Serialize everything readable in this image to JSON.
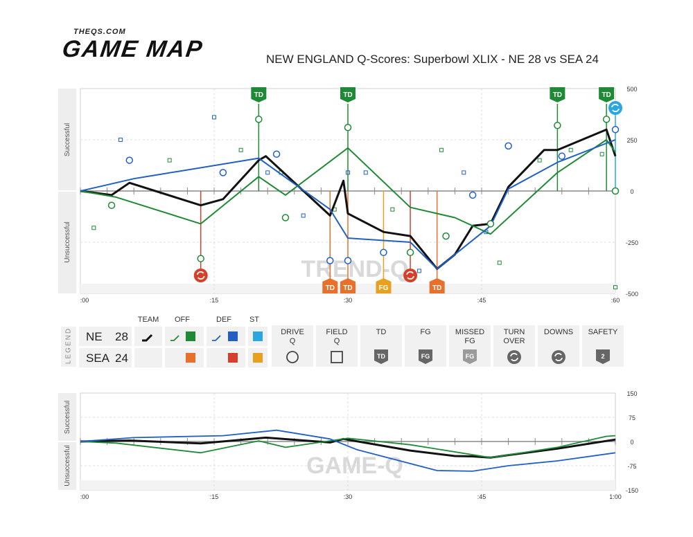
{
  "brand": {
    "site": "THEQS.COM",
    "product": "GAME MAP"
  },
  "title": "NEW ENGLAND Q-Scores: Superbowl XLIX - NE 28 vs SEA 24",
  "colors": {
    "team": "#111111",
    "ne_off": "#1e8a36",
    "ne_def": "#1f5fc6",
    "ne_st": "#2aa6e0",
    "sea_off": "#e8702a",
    "sea_def": "#d6402a",
    "sea_st": "#e7a11f",
    "panel": "#f1f1f1"
  },
  "chart_data": [
    {
      "type": "line",
      "name": "TREND-Q",
      "title": "NEW ENGLAND Q-Scores: Superbowl XLIX - NE 28 vs SEA 24",
      "watermark": "TREND-Q",
      "ylabel_top": "Successful",
      "ylabel_bottom": "Unsuccessful",
      "ylim": [
        -500,
        500
      ],
      "xlim": [
        0,
        60
      ],
      "yticks": [
        "500",
        "250",
        "0",
        "-250",
        "-500"
      ],
      "xticks": [
        ":00",
        ":15",
        ":30",
        ":45",
        ":60"
      ],
      "grid": true,
      "series": [
        {
          "name": "TEAM",
          "color": "#111111",
          "x": [
            0,
            3.5,
            5.5,
            13.5,
            16,
            20,
            20.8,
            28,
            29.5,
            30,
            34,
            37,
            40,
            42,
            44,
            46,
            48,
            52,
            53.5,
            59,
            60
          ],
          "y": [
            0,
            -20,
            40,
            -70,
            -40,
            150,
            170,
            -120,
            50,
            -110,
            -200,
            -220,
            -380,
            -310,
            -170,
            -160,
            20,
            200,
            200,
            300,
            170
          ]
        },
        {
          "name": "OFF",
          "color": "#1e8a36",
          "x": [
            0,
            4,
            13.5,
            20,
            23,
            30,
            37,
            42,
            46,
            53.5,
            59,
            60
          ],
          "y": [
            0,
            -30,
            -160,
            70,
            -20,
            210,
            -80,
            -130,
            -210,
            90,
            250,
            190
          ]
        },
        {
          "name": "DEF",
          "color": "#1f5fc6",
          "x": [
            0,
            6,
            20,
            28,
            30,
            37,
            40,
            46,
            48,
            53.5,
            60
          ],
          "y": [
            0,
            60,
            160,
            -90,
            -230,
            -250,
            -380,
            -170,
            10,
            140,
            250
          ]
        }
      ],
      "drive_q_points": [
        {
          "x": 3.5,
          "y": -70,
          "team": "OFF"
        },
        {
          "x": 5.5,
          "y": 150,
          "team": "DEF"
        },
        {
          "x": 16,
          "y": 90,
          "team": "DEF"
        },
        {
          "x": 13.5,
          "y": -330,
          "team": "OFF"
        },
        {
          "x": 20,
          "y": 350,
          "team": "OFF"
        },
        {
          "x": 22,
          "y": 180,
          "team": "DEF"
        },
        {
          "x": 23,
          "y": -130,
          "team": "OFF"
        },
        {
          "x": 28,
          "y": -340,
          "team": "DEF"
        },
        {
          "x": 30,
          "y": 310,
          "team": "OFF"
        },
        {
          "x": 30,
          "y": -340,
          "team": "DEF"
        },
        {
          "x": 34,
          "y": -300,
          "team": "DEF"
        },
        {
          "x": 37,
          "y": -300,
          "team": "OFF"
        },
        {
          "x": 41,
          "y": -220,
          "team": "OFF"
        },
        {
          "x": 44,
          "y": -20,
          "team": "DEF"
        },
        {
          "x": 46,
          "y": -160,
          "team": "OFF"
        },
        {
          "x": 48,
          "y": 220,
          "team": "DEF"
        },
        {
          "x": 53.5,
          "y": 320,
          "team": "OFF"
        },
        {
          "x": 54,
          "y": 170,
          "team": "DEF"
        },
        {
          "x": 59,
          "y": 350,
          "team": "OFF"
        },
        {
          "x": 60,
          "y": 300,
          "team": "DEF"
        },
        {
          "x": 60,
          "y": 0,
          "team": "OFF"
        }
      ],
      "field_q_points": [
        {
          "x": 1.5,
          "y": -180,
          "team": "OFF"
        },
        {
          "x": 4.5,
          "y": 250,
          "team": "DEF"
        },
        {
          "x": 10,
          "y": 150,
          "team": "OFF"
        },
        {
          "x": 15,
          "y": 360,
          "team": "DEF"
        },
        {
          "x": 18,
          "y": 200,
          "team": "OFF"
        },
        {
          "x": 21,
          "y": 90,
          "team": "DEF"
        },
        {
          "x": 22.5,
          "y": 90,
          "team": "OFF"
        },
        {
          "x": 25,
          "y": -120,
          "team": "DEF"
        },
        {
          "x": 28.5,
          "y": -90,
          "team": "OFF"
        },
        {
          "x": 30,
          "y": 90,
          "team": "DEF"
        },
        {
          "x": 32,
          "y": 90,
          "team": "DEF"
        },
        {
          "x": 35,
          "y": -90,
          "team": "OFF"
        },
        {
          "x": 38,
          "y": -390,
          "team": "DEF"
        },
        {
          "x": 40.5,
          "y": 200,
          "team": "OFF"
        },
        {
          "x": 43,
          "y": 90,
          "team": "DEF"
        },
        {
          "x": 45.5,
          "y": -200,
          "team": "DEF"
        },
        {
          "x": 47,
          "y": -350,
          "team": "OFF"
        },
        {
          "x": 51.5,
          "y": 150,
          "team": "OFF"
        },
        {
          "x": 55,
          "y": 200,
          "team": "OFF"
        },
        {
          "x": 58.5,
          "y": 180,
          "team": "OFF"
        },
        {
          "x": 60,
          "y": -470,
          "team": "OFF"
        }
      ],
      "events": [
        {
          "label": "TD",
          "x": 20,
          "side": "NE",
          "y": 350
        },
        {
          "label": "TD",
          "x": 30,
          "side": "NE",
          "y": 310
        },
        {
          "label": "TD",
          "x": 53.5,
          "side": "NE",
          "y": 320
        },
        {
          "label": "TD",
          "x": 59,
          "side": "NE",
          "y": 350
        },
        {
          "label": "TD",
          "x": 28,
          "side": "SEA",
          "y": -110
        },
        {
          "label": "TD",
          "x": 30,
          "side": "SEA",
          "y": -110
        },
        {
          "label": "FG",
          "x": 34,
          "side": "SEA",
          "y": 0
        },
        {
          "label": "TD",
          "x": 40,
          "side": "SEA",
          "y": 0
        }
      ],
      "turnovers": [
        {
          "x": 13.5,
          "side": "SEA",
          "y": 0
        },
        {
          "x": 37,
          "side": "SEA",
          "y": 0
        },
        {
          "x": 60,
          "side": "NE",
          "y": 320
        }
      ]
    },
    {
      "type": "line",
      "name": "GAME-Q",
      "watermark": "GAME-Q",
      "ylabel_top": "Successful",
      "ylabel_bottom": "Unsuccessful",
      "ylim": [
        -150,
        150
      ],
      "xlim": [
        0,
        60
      ],
      "yticks": [
        "150",
        "75",
        "0",
        "-75",
        "-150"
      ],
      "xticks": [
        ":00",
        ":15",
        ":30",
        ":45",
        "1:00"
      ],
      "series": [
        {
          "name": "TEAM",
          "color": "#111111",
          "x": [
            0,
            5.5,
            13.5,
            20.8,
            28,
            29.5,
            37,
            42,
            44,
            46,
            48,
            53.5,
            60
          ],
          "y": [
            0,
            3,
            -6,
            12,
            -3,
            8,
            -28,
            -45,
            -46,
            -50,
            -42,
            -22,
            6
          ]
        },
        {
          "name": "OFF",
          "color": "#1e8a36",
          "x": [
            0,
            4,
            13.5,
            20,
            23,
            30,
            37,
            46,
            53.5,
            59,
            60
          ],
          "y": [
            0,
            -5,
            -35,
            2,
            -18,
            10,
            -10,
            -50,
            -18,
            16,
            18
          ]
        },
        {
          "name": "DEF",
          "color": "#1f5fc6",
          "x": [
            0,
            6,
            16,
            22,
            28,
            31,
            40,
            44,
            48,
            53.5,
            60
          ],
          "y": [
            0,
            12,
            18,
            35,
            8,
            -25,
            -90,
            -92,
            -75,
            -60,
            -35
          ]
        }
      ]
    }
  ],
  "legend": {
    "section_label": "LEGEND",
    "headers": {
      "team": "TEAM",
      "off": "OFF",
      "def": "DEF",
      "st": "ST"
    },
    "teams": [
      {
        "abbr": "NE",
        "score": "28"
      },
      {
        "abbr": "SEA",
        "score": "24"
      }
    ],
    "icons": [
      {
        "label": "DRIVE\nQ",
        "icon": "drive-q-circle-icon"
      },
      {
        "label": "FIELD\nQ",
        "icon": "field-q-square-icon"
      },
      {
        "label": "TD",
        "icon": "td-badge-icon",
        "badge": "TD"
      },
      {
        "label": "FG",
        "icon": "fg-badge-icon",
        "badge": "FG"
      },
      {
        "label": "MISSED\nFG",
        "icon": "missed-fg-badge-icon",
        "badge": "FG"
      },
      {
        "label": "TURN\nOVER",
        "icon": "turnover-icon"
      },
      {
        "label": "DOWNS",
        "icon": "downs-icon"
      },
      {
        "label": "SAFETY",
        "icon": "safety-badge-icon",
        "badge": "2"
      }
    ]
  }
}
